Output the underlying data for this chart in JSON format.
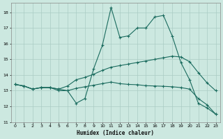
{
  "xlabel": "Humidex (Indice chaleur)",
  "bg_color": "#cce8e0",
  "grid_color": "#aaccc4",
  "line_color": "#1a6b5e",
  "xlim": [
    -0.5,
    23.5
  ],
  "ylim": [
    11,
    18.6
  ],
  "yticks": [
    11,
    12,
    13,
    14,
    15,
    16,
    17,
    18
  ],
  "xticks": [
    0,
    1,
    2,
    3,
    4,
    5,
    6,
    7,
    8,
    9,
    10,
    11,
    12,
    13,
    14,
    15,
    16,
    17,
    18,
    19,
    20,
    21,
    22,
    23
  ],
  "line1_y": [
    13.4,
    13.3,
    13.1,
    13.2,
    13.2,
    13.0,
    13.0,
    12.2,
    12.5,
    14.4,
    15.9,
    18.3,
    16.4,
    16.5,
    17.0,
    17.0,
    17.7,
    17.8,
    16.5,
    14.8,
    13.7,
    12.2,
    11.9,
    11.5
  ],
  "line2_y": [
    13.4,
    13.3,
    13.1,
    13.2,
    13.2,
    13.1,
    13.3,
    13.7,
    13.85,
    14.05,
    14.3,
    14.5,
    14.6,
    14.7,
    14.8,
    14.9,
    15.0,
    15.1,
    15.2,
    15.15,
    14.85,
    14.15,
    13.5,
    13.0
  ],
  "line3_y": [
    13.4,
    13.3,
    13.1,
    13.2,
    13.2,
    13.1,
    13.0,
    13.15,
    13.25,
    13.35,
    13.45,
    13.55,
    13.45,
    13.4,
    13.38,
    13.32,
    13.3,
    13.28,
    13.25,
    13.2,
    13.1,
    12.5,
    12.1,
    11.5
  ]
}
